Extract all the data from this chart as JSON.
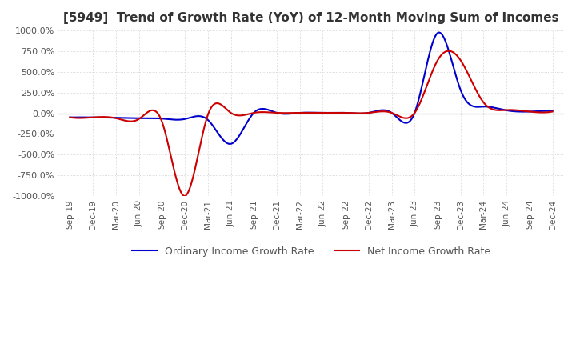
{
  "title": "[5949]  Trend of Growth Rate (YoY) of 12-Month Moving Sum of Incomes",
  "title_fontsize": 11,
  "ylim": [
    -1000,
    1000
  ],
  "yticks": [
    -1000,
    -750,
    -500,
    -250,
    0,
    250,
    500,
    750,
    1000
  ],
  "background_color": "#ffffff",
  "plot_bg_color": "#ffffff",
  "grid_color": "#cccccc",
  "ordinary_color": "#0000cc",
  "net_color": "#cc0000",
  "legend_ordinary": "Ordinary Income Growth Rate",
  "legend_net": "Net Income Growth Rate",
  "x_dates": [
    "Sep-19",
    "Dec-19",
    "Mar-20",
    "Jun-20",
    "Sep-20",
    "Dec-20",
    "Mar-21",
    "Jun-21",
    "Sep-21",
    "Dec-21",
    "Mar-22",
    "Jun-22",
    "Sep-22",
    "Dec-22",
    "Mar-23",
    "Jun-23",
    "Sep-23",
    "Dec-23",
    "Mar-24",
    "Jun-24",
    "Sep-24",
    "Dec-24"
  ],
  "ordinary_values": [
    -50,
    -50,
    -55,
    -60,
    -65,
    -70,
    -80,
    -370,
    5,
    5,
    5,
    5,
    5,
    5,
    5,
    5,
    970,
    280,
    80,
    35,
    20,
    30
  ],
  "net_values": [
    -50,
    -50,
    -60,
    -70,
    -100,
    -1000,
    -20,
    5,
    5,
    5,
    5,
    5,
    5,
    5,
    5,
    5,
    640,
    640,
    130,
    40,
    20,
    20
  ]
}
